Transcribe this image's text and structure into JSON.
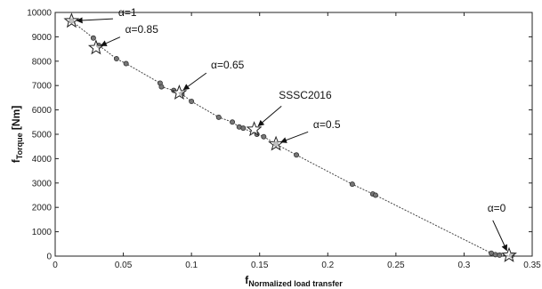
{
  "chart_data": {
    "type": "scatter",
    "xlabel_main": "f",
    "xlabel_sub": "Normalized load transfer",
    "ylabel_main": "f",
    "ylabel_sub": "Torque",
    "ylabel_unit": " [Nm]",
    "xlim": [
      0,
      0.35
    ],
    "ylim": [
      0,
      10000
    ],
    "xticks": [
      "0",
      "0.05",
      "0.1",
      "0.15",
      "0.2",
      "0.25",
      "0.3",
      "0.35"
    ],
    "yticks": [
      "0",
      "1000",
      "2000",
      "3000",
      "4000",
      "5000",
      "6000",
      "7000",
      "8000",
      "9000",
      "10000"
    ],
    "grid": false,
    "series": [
      {
        "marker": "circle",
        "points": [
          {
            "x": 0.012,
            "y": 9650
          },
          {
            "x": 0.028,
            "y": 8950
          },
          {
            "x": 0.032,
            "y": 8650
          },
          {
            "x": 0.045,
            "y": 8100
          },
          {
            "x": 0.052,
            "y": 7900
          },
          {
            "x": 0.077,
            "y": 7100
          },
          {
            "x": 0.078,
            "y": 6950
          },
          {
            "x": 0.087,
            "y": 6800
          },
          {
            "x": 0.093,
            "y": 6650
          },
          {
            "x": 0.1,
            "y": 6350
          },
          {
            "x": 0.12,
            "y": 5700
          },
          {
            "x": 0.13,
            "y": 5500
          },
          {
            "x": 0.135,
            "y": 5300
          },
          {
            "x": 0.138,
            "y": 5250
          },
          {
            "x": 0.148,
            "y": 5000
          },
          {
            "x": 0.153,
            "y": 4900
          },
          {
            "x": 0.162,
            "y": 4600
          },
          {
            "x": 0.177,
            "y": 4150
          },
          {
            "x": 0.218,
            "y": 2950
          },
          {
            "x": 0.233,
            "y": 2550
          },
          {
            "x": 0.235,
            "y": 2500
          },
          {
            "x": 0.32,
            "y": 120
          },
          {
            "x": 0.323,
            "y": 60
          },
          {
            "x": 0.326,
            "y": 40
          },
          {
            "x": 0.335,
            "y": 30
          }
        ]
      },
      {
        "marker": "star",
        "points": [
          {
            "x": 0.012,
            "y": 9650
          },
          {
            "x": 0.03,
            "y": 8550
          },
          {
            "x": 0.091,
            "y": 6700
          },
          {
            "x": 0.146,
            "y": 5200
          },
          {
            "x": 0.162,
            "y": 4600
          },
          {
            "x": 0.333,
            "y": 30
          }
        ]
      }
    ],
    "annotations": [
      {
        "text": "α=1",
        "x": 0.012,
        "y": 9650,
        "tx": 0.045,
        "ty": 9750
      },
      {
        "text": "α=0.85",
        "x": 0.03,
        "y": 8550,
        "tx": 0.05,
        "ty": 9050
      },
      {
        "text": "α=0.65",
        "x": 0.091,
        "y": 6700,
        "tx": 0.113,
        "ty": 7600
      },
      {
        "text": "SSSC2016",
        "x": 0.146,
        "y": 5200,
        "tx": 0.168,
        "ty": 6250
      },
      {
        "text": "α=0.5",
        "x": 0.162,
        "y": 4600,
        "tx": 0.188,
        "ty": 5150
      },
      {
        "text": "α=0",
        "x": 0.333,
        "y": 30,
        "tx": 0.32,
        "ty": 1600
      }
    ]
  }
}
